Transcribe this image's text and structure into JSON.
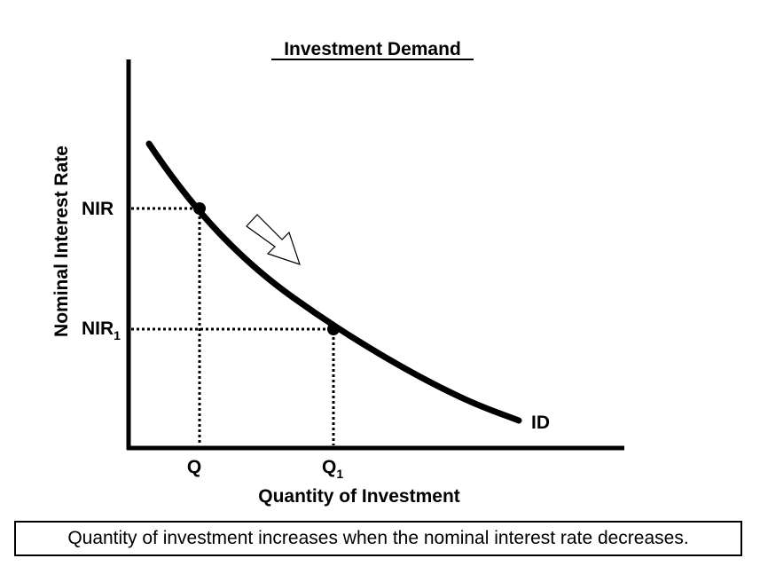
{
  "title": "Investment Demand",
  "x_axis_label": "Quantity of Investment",
  "y_axis_label": "Nominal Interest Rate",
  "curve_label": "ID",
  "y_marks": {
    "nir": "NIR",
    "nir1_base": "NIR",
    "nir1_sub": "1"
  },
  "x_marks": {
    "q": "Q",
    "q1_base": "Q",
    "q1_sub": "1"
  },
  "caption": "Quantity of investment increases when the nominal interest rate decreases.",
  "colors": {
    "ink": "#000000",
    "background": "#ffffff"
  },
  "movement_arrow_icon": "hollow-arrow-down-right-icon"
}
